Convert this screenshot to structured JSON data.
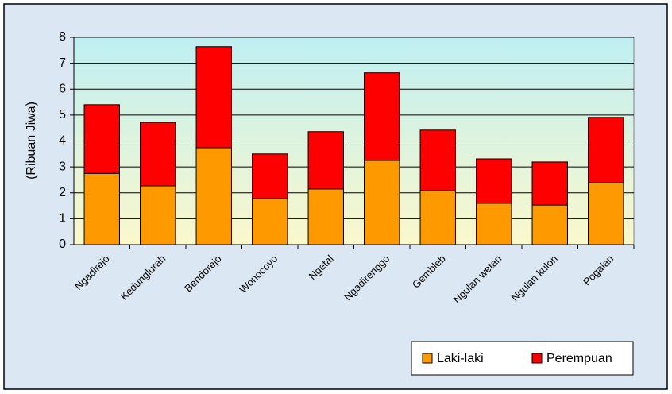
{
  "chart_data": {
    "type": "stacked_bar",
    "y_label": "(Ribuan Jiwa)",
    "categories": [
      "Ngadirejo",
      "Kedunglurah",
      "Bendorejo",
      "Wonocoyo",
      "Ngetal",
      "Ngadirenggo",
      "Gembleb",
      "Ngulan wetan",
      "Ngulan kulon",
      "Pogalan"
    ],
    "series": [
      {
        "name": "Laki-laki",
        "color": "#ff9900",
        "values": [
          2.75,
          2.27,
          3.74,
          1.78,
          2.15,
          3.25,
          2.09,
          1.6,
          1.53,
          2.39
        ]
      },
      {
        "name": "Perempuan",
        "color": "#ff0000",
        "values": [
          2.65,
          2.45,
          3.9,
          1.72,
          2.21,
          3.38,
          2.33,
          1.71,
          1.66,
          2.52
        ]
      }
    ],
    "ylim": [
      0,
      8
    ],
    "yticks": [
      0,
      1,
      2,
      3,
      4,
      5,
      6,
      7,
      8
    ],
    "grid": true,
    "legend": "bottom-right"
  }
}
